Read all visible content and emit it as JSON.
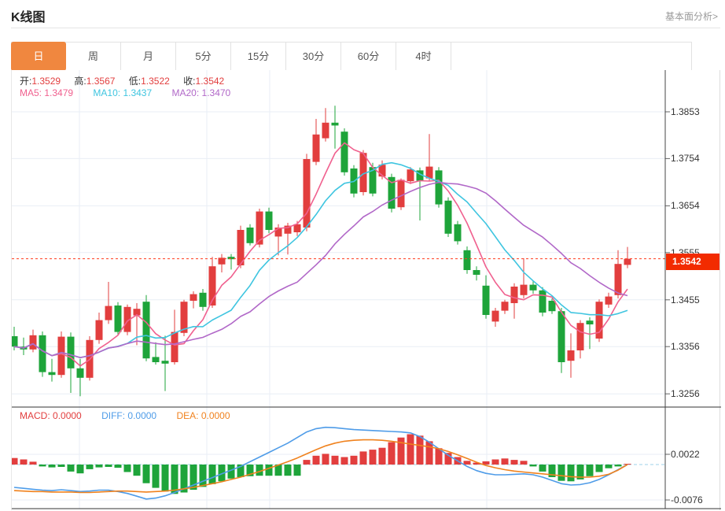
{
  "header": {
    "title": "K线图",
    "link": "基本面分析>"
  },
  "tabs": [
    {
      "label": "日",
      "active": true
    },
    {
      "label": "周",
      "active": false
    },
    {
      "label": "月",
      "active": false
    },
    {
      "label": "5分",
      "active": false
    },
    {
      "label": "15分",
      "active": false
    },
    {
      "label": "30分",
      "active": false
    },
    {
      "label": "60分",
      "active": false
    },
    {
      "label": "4时",
      "active": false
    }
  ],
  "legend": {
    "open_label": "开:",
    "open": "1.3529",
    "high_label": "高:",
    "high": "1.3567",
    "low_label": "低:",
    "low": "1.3522",
    "close_label": "收:",
    "close": "1.3542",
    "ma5_label": "MA5:",
    "ma5": "1.3479",
    "ma10_label": "MA10:",
    "ma10": "1.3437",
    "ma20_label": "MA20:",
    "ma20": "1.3470"
  },
  "macd_legend": {
    "macd_label": "MACD:",
    "macd": "0.0000",
    "diff_label": "DIFF:",
    "diff": "0.0000",
    "dea_label": "DEA:",
    "dea": "0.0000"
  },
  "price_axis": {
    "ticks": [
      "1.3853",
      "1.3754",
      "1.3654",
      "1.3555",
      "1.3455",
      "1.3356",
      "1.3256"
    ],
    "badge": "1.3542"
  },
  "macd_axis": {
    "ticks": [
      "0.0022",
      "-0.0076"
    ]
  },
  "chart_data": {
    "type": "candlestick",
    "title": "K线图",
    "panels": [
      "price+MA(5,10,20)",
      "MACD(histogram,DIFF,DEA)"
    ],
    "price_axis_ticks": [
      1.3853,
      1.3754,
      1.3654,
      1.3555,
      1.3455,
      1.3356,
      1.3256
    ],
    "macd_axis_ticks": [
      0.0022,
      -0.0076
    ],
    "current_price": 1.3542,
    "ohlc_last": {
      "open": 1.3529,
      "high": 1.3567,
      "low": 1.3522,
      "close": 1.3542
    },
    "ma_last": {
      "ma5": 1.3479,
      "ma10": 1.3437,
      "ma20": 1.347
    },
    "ma_periods": [
      5,
      10,
      20
    ],
    "up_color_convention": "red-rise green-fall",
    "candles": [
      [
        1.3378,
        1.3398,
        1.3348,
        1.3356
      ],
      [
        1.3356,
        1.3375,
        1.3338,
        1.335
      ],
      [
        1.335,
        1.3392,
        1.3344,
        1.338
      ],
      [
        1.338,
        1.3388,
        1.3292,
        1.3302
      ],
      [
        1.3302,
        1.333,
        1.3282,
        1.3296
      ],
      [
        1.3296,
        1.3388,
        1.329,
        1.3377
      ],
      [
        1.3377,
        1.3386,
        1.3258,
        1.331
      ],
      [
        1.331,
        1.333,
        1.3251,
        1.329
      ],
      [
        1.329,
        1.3378,
        1.3284,
        1.337
      ],
      [
        1.337,
        1.3428,
        1.3362,
        1.3412
      ],
      [
        1.3412,
        1.3493,
        1.3404,
        1.3442
      ],
      [
        1.3443,
        1.345,
        1.338,
        1.3387
      ],
      [
        1.3387,
        1.3445,
        1.338,
        1.344
      ],
      [
        1.3422,
        1.3448,
        1.3359,
        1.3436
      ],
      [
        1.3451,
        1.3465,
        1.3325,
        1.3331
      ],
      [
        1.3334,
        1.3365,
        1.3318,
        1.3323
      ],
      [
        1.3326,
        1.3379,
        1.3262,
        1.332
      ],
      [
        1.3323,
        1.3434,
        1.3318,
        1.3387
      ],
      [
        1.3385,
        1.3455,
        1.3378,
        1.3451
      ],
      [
        1.3453,
        1.3473,
        1.3437,
        1.3467
      ],
      [
        1.347,
        1.3478,
        1.3432,
        1.344
      ],
      [
        1.3443,
        1.3546,
        1.3438,
        1.3526
      ],
      [
        1.353,
        1.3552,
        1.3513,
        1.3544
      ],
      [
        1.3546,
        1.3552,
        1.3519,
        1.3541
      ],
      [
        1.3528,
        1.3612,
        1.3522,
        1.3603
      ],
      [
        1.3608,
        1.3615,
        1.357,
        1.3575
      ],
      [
        1.3572,
        1.3648,
        1.3566,
        1.3642
      ],
      [
        1.3642,
        1.365,
        1.3596,
        1.3603
      ],
      [
        1.3589,
        1.3615,
        1.3549,
        1.3608
      ],
      [
        1.3595,
        1.3618,
        1.3551,
        1.3612
      ],
      [
        1.3598,
        1.3622,
        1.359,
        1.3615
      ],
      [
        1.3608,
        1.3764,
        1.36,
        1.3753
      ],
      [
        1.3747,
        1.3838,
        1.374,
        1.3805
      ],
      [
        1.3797,
        1.3861,
        1.379,
        1.383
      ],
      [
        1.383,
        1.3866,
        1.3775,
        1.3824
      ],
      [
        1.3811,
        1.3818,
        1.3718,
        1.3725
      ],
      [
        1.3733,
        1.374,
        1.3672,
        1.368
      ],
      [
        1.3683,
        1.3772,
        1.3676,
        1.3766
      ],
      [
        1.3736,
        1.3745,
        1.3674,
        1.368
      ],
      [
        1.3716,
        1.375,
        1.371,
        1.3741
      ],
      [
        1.3715,
        1.3722,
        1.364,
        1.3648
      ],
      [
        1.3651,
        1.3712,
        1.3645,
        1.3709
      ],
      [
        1.3706,
        1.3736,
        1.37,
        1.3731
      ],
      [
        1.3729,
        1.3735,
        1.3623,
        1.3707
      ],
      [
        1.3712,
        1.3806,
        1.3706,
        1.3737
      ],
      [
        1.3729,
        1.3736,
        1.365,
        1.3657
      ],
      [
        1.3665,
        1.3672,
        1.3588,
        1.3595
      ],
      [
        1.3615,
        1.3622,
        1.3572,
        1.3579
      ],
      [
        1.356,
        1.3568,
        1.351,
        1.3518
      ],
      [
        1.3518,
        1.3526,
        1.3496,
        1.3508
      ],
      [
        1.3485,
        1.3507,
        1.3415,
        1.3423
      ],
      [
        1.3409,
        1.3438,
        1.3398,
        1.3432
      ],
      [
        1.3432,
        1.3455,
        1.3425,
        1.3451
      ],
      [
        1.3448,
        1.349,
        1.3415,
        1.3483
      ],
      [
        1.3465,
        1.3543,
        1.3458,
        1.3487
      ],
      [
        1.3487,
        1.3495,
        1.3468,
        1.3475
      ],
      [
        1.3475,
        1.3482,
        1.342,
        1.3428
      ],
      [
        1.3453,
        1.3458,
        1.3425,
        1.3431
      ],
      [
        1.3431,
        1.3438,
        1.33,
        1.3323
      ],
      [
        1.3326,
        1.3384,
        1.329,
        1.3348
      ],
      [
        1.3348,
        1.3412,
        1.3331,
        1.3406
      ],
      [
        1.3411,
        1.3418,
        1.3351,
        1.3403
      ],
      [
        1.3373,
        1.3456,
        1.3366,
        1.3451
      ],
      [
        1.3445,
        1.347,
        1.3438,
        1.3462
      ],
      [
        1.3465,
        1.356,
        1.3458,
        1.3531
      ],
      [
        1.3529,
        1.3567,
        1.3522,
        1.3542
      ]
    ],
    "macd": {
      "histogram": [
        0.0014,
        0.0011,
        0.0006,
        -0.0004,
        -0.0006,
        -0.0005,
        -0.0015,
        -0.0019,
        -0.001,
        -0.0006,
        -0.0005,
        -0.0007,
        -0.0016,
        -0.0024,
        -0.004,
        -0.005,
        -0.0058,
        -0.0063,
        -0.006,
        -0.0054,
        -0.0048,
        -0.0042,
        -0.0036,
        -0.003,
        -0.0027,
        -0.0025,
        -0.0024,
        -0.0024,
        -0.0024,
        -0.0024,
        -0.0024,
        0.001,
        0.0019,
        0.0023,
        0.0019,
        0.0016,
        0.0019,
        0.0028,
        0.0032,
        0.0036,
        0.0048,
        0.0058,
        0.0065,
        0.0062,
        0.005,
        0.0035,
        0.0025,
        0.0016,
        0.0008,
        0.0004,
        0.0007,
        0.0011,
        0.0013,
        0.001,
        0.0008,
        -0.0004,
        -0.0015,
        -0.0027,
        -0.0035,
        -0.0036,
        -0.0032,
        -0.0025,
        -0.0016,
        -0.0008,
        -0.0004,
        0.0
      ],
      "diff": [
        -0.0049,
        -0.0051,
        -0.0053,
        -0.0055,
        -0.0056,
        -0.0054,
        -0.0056,
        -0.0058,
        -0.0057,
        -0.0055,
        -0.0055,
        -0.0058,
        -0.0062,
        -0.0068,
        -0.0074,
        -0.0072,
        -0.0067,
        -0.006,
        -0.0052,
        -0.0044,
        -0.0036,
        -0.0028,
        -0.002,
        -0.0012,
        -0.0004,
        0.0006,
        0.0016,
        0.0026,
        0.0036,
        0.0046,
        0.0058,
        0.007,
        0.0077,
        0.008,
        0.0079,
        0.0077,
        0.0075,
        0.0074,
        0.0073,
        0.0072,
        0.0071,
        0.007,
        0.0068,
        0.006,
        0.0048,
        0.0034,
        0.002,
        0.0008,
        -0.0004,
        -0.0013,
        -0.0019,
        -0.0022,
        -0.0022,
        -0.0021,
        -0.002,
        -0.0022,
        -0.0027,
        -0.0034,
        -0.0041,
        -0.0044,
        -0.0043,
        -0.0039,
        -0.0032,
        -0.0022,
        -0.0011,
        0.0
      ],
      "dea": [
        -0.0056,
        -0.0057,
        -0.0058,
        -0.0058,
        -0.0059,
        -0.0059,
        -0.0059,
        -0.006,
        -0.006,
        -0.0059,
        -0.0058,
        -0.0057,
        -0.0057,
        -0.0058,
        -0.0059,
        -0.0058,
        -0.0057,
        -0.0055,
        -0.0052,
        -0.0049,
        -0.0045,
        -0.0041,
        -0.0037,
        -0.0032,
        -0.0027,
        -0.0021,
        -0.0015,
        -0.0008,
        -0.0001,
        0.0006,
        0.0014,
        0.0023,
        0.0032,
        0.004,
        0.0046,
        0.005,
        0.0052,
        0.0053,
        0.0053,
        0.0052,
        0.005,
        0.0047,
        0.0044,
        0.0041,
        0.0038,
        0.0034,
        0.0028,
        0.0021,
        0.0013,
        0.0005,
        -0.0002,
        -0.0007,
        -0.0011,
        -0.0014,
        -0.0016,
        -0.0018,
        -0.002,
        -0.0022,
        -0.0024,
        -0.0026,
        -0.0027,
        -0.0027,
        -0.0025,
        -0.0021,
        -0.0012,
        0.0
      ]
    },
    "vertical_gridlines_x": [
      100,
      262,
      342,
      618
    ],
    "colors": {
      "up": "#e23e3e",
      "down": "#1ea43a",
      "ma5": "#f0618f",
      "ma10": "#3fc5e0",
      "ma20": "#b168c8",
      "diff": "#4f9ce8",
      "dea": "#f0821e",
      "price_line": "#ff3b1f",
      "badge_bg": "#f22b00",
      "grid": "#e9eef5",
      "zero_line": "#9fd0ea",
      "axis": "#444444",
      "active_tab": "#f0873f"
    }
  }
}
